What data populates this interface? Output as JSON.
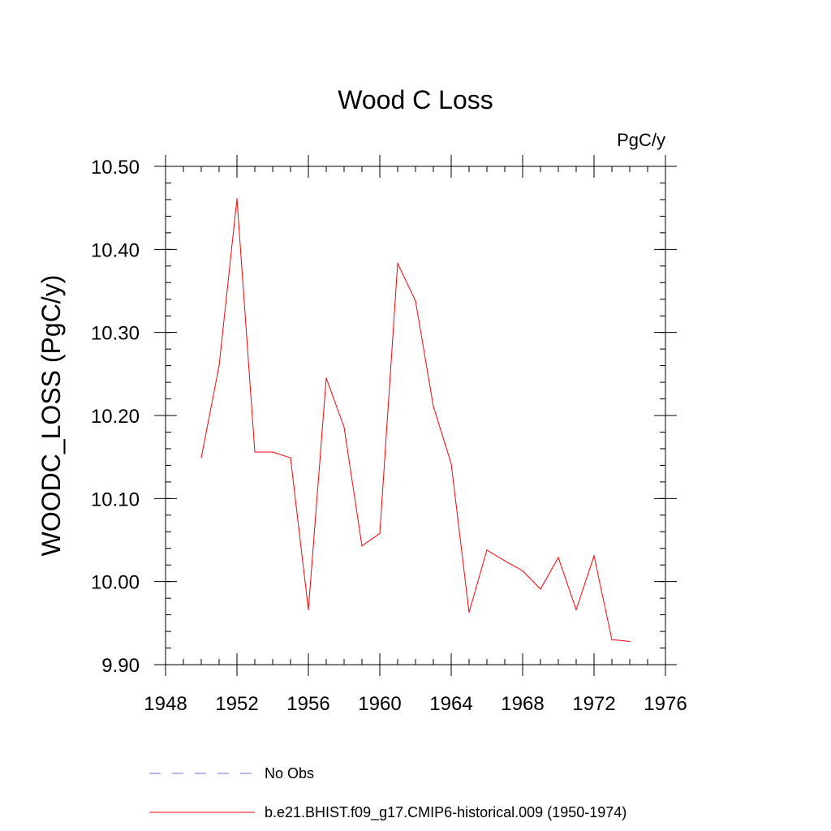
{
  "chart_data": {
    "type": "line",
    "title": "Wood C Loss",
    "units": "PgC/y",
    "xlabel": "",
    "ylabel": "WOODC_LOSS  (PgC/y)",
    "xlim": [
      1948,
      1976
    ],
    "ylim": [
      9.9,
      10.5
    ],
    "x_ticks": [
      1948,
      1952,
      1956,
      1960,
      1964,
      1968,
      1972,
      1976
    ],
    "y_ticks": [
      "9.90",
      "10.00",
      "10.10",
      "10.20",
      "10.30",
      "10.40",
      "10.50"
    ],
    "x_minor_step": 1,
    "y_minor_step": 0.02,
    "series": [
      {
        "name": "b.e21.BHIST.f09_g17.CMIP6-historical.009 (1950-1974)",
        "color": "#ff0000",
        "style": "solid",
        "x": [
          1950,
          1951,
          1952,
          1953,
          1954,
          1955,
          1956,
          1957,
          1958,
          1959,
          1960,
          1961,
          1962,
          1963,
          1964,
          1965,
          1966,
          1967,
          1968,
          1969,
          1970,
          1971,
          1972,
          1973,
          1974
        ],
        "values": [
          10.149,
          10.26,
          10.461,
          10.156,
          10.156,
          10.149,
          9.966,
          10.245,
          10.186,
          10.043,
          10.058,
          10.383,
          10.338,
          10.211,
          10.142,
          9.963,
          10.038,
          10.025,
          10.013,
          9.991,
          10.029,
          9.966,
          10.031,
          9.93,
          9.928
        ]
      }
    ],
    "legend": [
      {
        "label": "No Obs",
        "color": "#7a6fc8",
        "style": "dashed"
      },
      {
        "label": "b.e21.BHIST.f09_g17.CMIP6-historical.009 (1950-1974)",
        "color": "#ff0000",
        "style": "solid"
      }
    ]
  }
}
